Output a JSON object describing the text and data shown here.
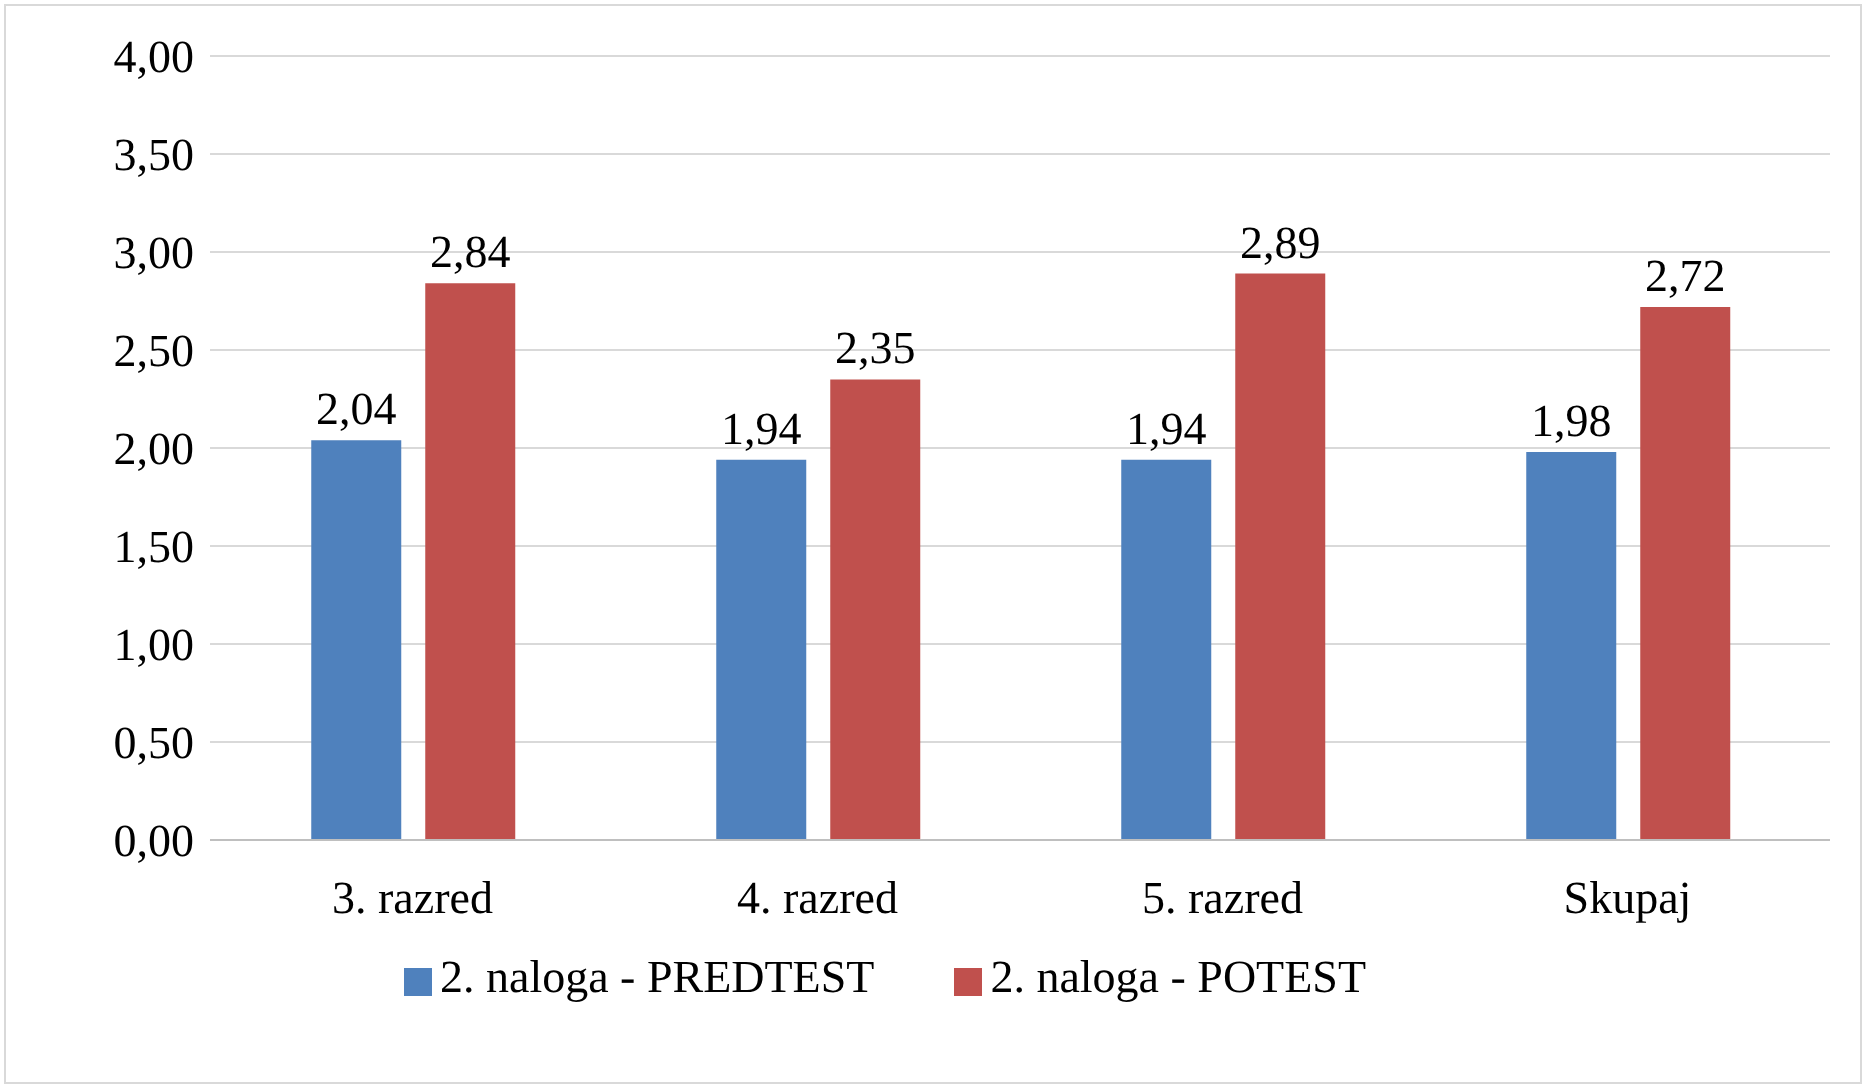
{
  "chart_data": {
    "type": "bar",
    "categories": [
      "3. razred",
      "4. razred",
      "5. razred",
      "Skupaj"
    ],
    "series": [
      {
        "name": "2. naloga - PREDTEST",
        "color": "#4f81bd",
        "values": [
          2.04,
          1.94,
          1.94,
          1.98
        ],
        "value_labels": [
          "2,04",
          "1,94",
          "1,94",
          "1,98"
        ]
      },
      {
        "name": "2. naloga - POTEST",
        "color": "#c0504d",
        "values": [
          2.84,
          2.35,
          2.89,
          2.72
        ],
        "value_labels": [
          "2,84",
          "2,35",
          "2,89",
          "2,72"
        ]
      }
    ],
    "ylim": [
      0,
      4
    ],
    "yticks": [
      {
        "value": 0,
        "label": "0,00"
      },
      {
        "value": 0.5,
        "label": "0,50"
      },
      {
        "value": 1,
        "label": "1,00"
      },
      {
        "value": 1.5,
        "label": "1,50"
      },
      {
        "value": 2,
        "label": "2,00"
      },
      {
        "value": 2.5,
        "label": "2,50"
      },
      {
        "value": 3,
        "label": "3,00"
      },
      {
        "value": 3.5,
        "label": "3,50"
      },
      {
        "value": 4,
        "label": "4,00"
      }
    ],
    "grid": "y",
    "legend": "bottom"
  }
}
